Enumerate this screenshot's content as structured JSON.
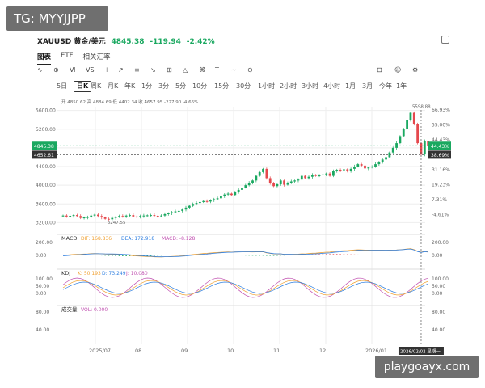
{
  "watermark_top": "TG: MYYJJPP",
  "watermark_bottom": "playgoayx.com",
  "header": {
    "symbol": "XAUUSD 黄金/美元",
    "price": "4845.38",
    "change": "-119.94",
    "pct": "-2.42%"
  },
  "tabs": [
    "图表",
    "ETF",
    "相关汇率"
  ],
  "toolbar": [
    "∿",
    "⊕",
    "Ⅵ",
    "VS",
    "⊣",
    "↗",
    "≡",
    "↘",
    "⊞",
    "△",
    "⌘",
    "T",
    "∼",
    "⊙",
    "⊡",
    "☺",
    "⚙"
  ],
  "periods": [
    "5日",
    "日K",
    "周K",
    "月K",
    "年K",
    "1分",
    "3分",
    "5分",
    "10分",
    "15分",
    "30分",
    "1小时",
    "2小时",
    "3小时",
    "4小时",
    "1月",
    "3月",
    "今年",
    "1年"
  ],
  "selected_period": "日K",
  "colors": {
    "up": "#1aa860",
    "down": "#e5484d",
    "dif": "#f0a030",
    "dea": "#2f7fe0",
    "k": "#f0a030",
    "d": "#2f7fe0",
    "j": "#c050b0",
    "grid": "#eeeeee"
  },
  "chart_data": {
    "type": "candlestick",
    "title": "XAUUSD 黄金/美元",
    "ohlc_readout": {
      "开": "4850.62",
      "高": "4884.69",
      "低": "4402.34",
      "收": "4657.95",
      "change": "-227.90",
      "pct": "-4.66%"
    },
    "x_labels": [
      "2025/07",
      "08",
      "09",
      "10",
      "11",
      "12",
      "2026/01"
    ],
    "crosshair_x_label": "2026/02/02 星期一",
    "y_ticks": [
      3200,
      3600,
      4000,
      4400,
      4800,
      5200,
      5600
    ],
    "y_tick_labels": [
      "3200.00",
      "3600.00",
      "4000.00",
      "4400.00",
      "4800.00",
      "5200.00",
      "5600.00"
    ],
    "ylim": [
      3120,
      5680
    ],
    "pct_labels": [
      "66.93%",
      "55.00%",
      "44.43%",
      "38.69%",
      "31.16%",
      "19.23%",
      "7.31%",
      "-4.61%"
    ],
    "last_price_label": "4845.38",
    "crosshair_price_label": "4652.61",
    "max_label": "5598.88",
    "min_label": "3247.55",
    "closes": [
      3350,
      3330,
      3345,
      3360,
      3340,
      3300,
      3310,
      3320,
      3350,
      3370,
      3340,
      3310,
      3280,
      3270,
      3300,
      3320,
      3340,
      3330,
      3350,
      3360,
      3330,
      3320,
      3340,
      3350,
      3355,
      3360,
      3345,
      3340,
      3350,
      3380,
      3400,
      3420,
      3440,
      3450,
      3480,
      3520,
      3560,
      3600,
      3620,
      3640,
      3660,
      3650,
      3680,
      3700,
      3720,
      3760,
      3800,
      3820,
      3790,
      3850,
      3900,
      3950,
      4000,
      4050,
      4100,
      4200,
      4280,
      4350,
      4150,
      4050,
      3980,
      4020,
      4100,
      4010,
      4050,
      4080,
      4100,
      4120,
      4200,
      4150,
      4180,
      4220,
      4200,
      4210,
      4230,
      4250,
      4200,
      4300,
      4330,
      4320,
      4340,
      4300,
      4350,
      4400,
      4450,
      4420,
      4360,
      4380,
      4400,
      4450,
      4500,
      4550,
      4600,
      4700,
      4800,
      4900,
      5050,
      5200,
      5400,
      5550,
      5300,
      4900,
      4657.95,
      4950,
      4845.38
    ],
    "macd": {
      "name": "MACD",
      "dif_label": "DIF: 168.836",
      "dea_label": "DEA: 172.918",
      "macd_label": "MACD: -8.128",
      "y_ticks": [
        "200.00",
        "0.00"
      ]
    },
    "kdj": {
      "name": "KDJ",
      "k_label": "K: 50.193",
      "d_label": "D: 73.249",
      "j_label": "J: 10.080",
      "y_ticks": [
        "100.00",
        "50.00",
        "0.00"
      ]
    },
    "volume": {
      "name": "成交量",
      "vol_label": "VOL: 0.000",
      "y_ticks": [
        "80.00",
        "40.00"
      ]
    }
  }
}
